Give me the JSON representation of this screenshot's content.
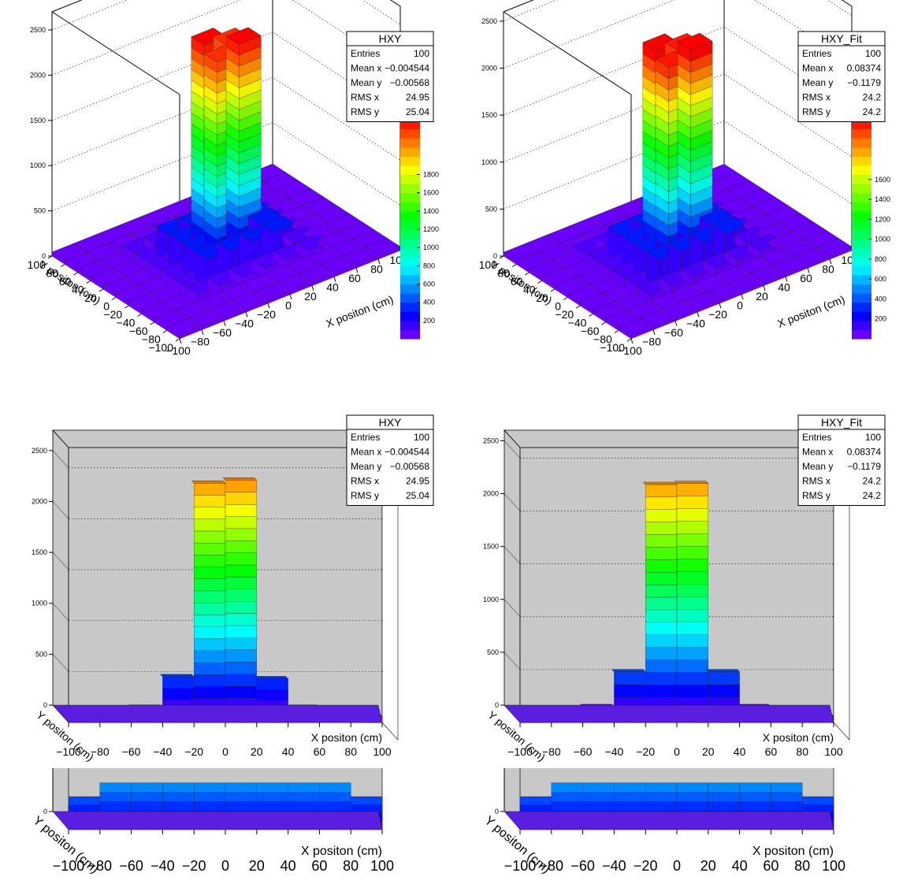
{
  "chart_data": [
    {
      "type": "bar3d",
      "panel": "top-left",
      "view": "lego-3d",
      "stats": {
        "title": "HXY",
        "rows": [
          {
            "label": "Entries",
            "value": "100"
          },
          {
            "label": "Mean x",
            "value": "−0.004544"
          },
          {
            "label": "Mean y",
            "value": "−0.00568"
          },
          {
            "label": "RMS x",
            "value": "24.95"
          },
          {
            "label": "RMS y",
            "value": "25.04"
          }
        ]
      },
      "xlabel": "X positon (cm)",
      "ylabel": "Y positon (cm)",
      "xticks": [
        "−100",
        "−80",
        "−60",
        "−40",
        "−20",
        "0",
        "20",
        "40",
        "60",
        "80",
        "100"
      ],
      "yticks": [
        "100",
        "80",
        "60",
        "40",
        "20",
        "0",
        "−20",
        "−40",
        "−60",
        "−80",
        "−100"
      ],
      "zticks": [
        "0",
        "500",
        "1000",
        "1500",
        "2000",
        "2500"
      ],
      "zlim": [
        0,
        2700
      ],
      "colz_ticks": [
        "200",
        "400",
        "600",
        "800",
        "1000",
        "1200",
        "1400",
        "1600",
        "1800"
      ],
      "colz_max": 2400,
      "peak": 2400
    },
    {
      "type": "bar3d",
      "panel": "top-right",
      "view": "lego-3d",
      "stats": {
        "title": "HXY_Fit",
        "rows": [
          {
            "label": "Entries",
            "value": "100"
          },
          {
            "label": "Mean x",
            "value": "0.08374"
          },
          {
            "label": "Mean y",
            "value": "−0.1179"
          },
          {
            "label": "RMS x",
            "value": "24.2"
          },
          {
            "label": "RMS y",
            "value": "24.2"
          }
        ]
      },
      "xlabel": "X positon (cm)",
      "ylabel": "Y positon (cm)",
      "xticks": [
        "−100",
        "−80",
        "−60",
        "−40",
        "−20",
        "0",
        "20",
        "40",
        "60",
        "80",
        "100"
      ],
      "yticks": [
        "100",
        "80",
        "60",
        "40",
        "20",
        "0",
        "−20",
        "−40",
        "−60",
        "−80",
        "−100"
      ],
      "zticks": [
        "0",
        "500",
        "1000",
        "1500",
        "2000",
        "2500"
      ],
      "zlim": [
        0,
        2600
      ],
      "colz_ticks": [
        "200",
        "400",
        "600",
        "800",
        "1000",
        "1200",
        "1400",
        "1600"
      ],
      "colz_max": 2200,
      "peak": 2250
    },
    {
      "type": "bar3d",
      "panel": "bottom-left",
      "view": "lego-front",
      "stats": {
        "title": "HXY",
        "rows": [
          {
            "label": "Entries",
            "value": "100"
          },
          {
            "label": "Mean x",
            "value": "−0.004544"
          },
          {
            "label": "Mean y",
            "value": "−0.00568"
          },
          {
            "label": "RMS x",
            "value": "24.95"
          },
          {
            "label": "RMS y",
            "value": "25.04"
          }
        ]
      },
      "xlabel": "X positon (cm)",
      "ylabel": "Y positon (cm)",
      "xticks": [
        "−100",
        "−80",
        "−60",
        "−40",
        "−20",
        "0",
        "20",
        "40",
        "60",
        "80",
        "100"
      ],
      "zticks": [
        "0",
        "500",
        "1000",
        "1500",
        "2000",
        "2500"
      ],
      "zlim": [
        0,
        2700
      ],
      "x": [
        -90,
        -70,
        -50,
        -30,
        -10,
        10,
        30,
        50,
        70,
        90
      ],
      "values": [
        60,
        90,
        150,
        450,
        2350,
        2380,
        430,
        150,
        90,
        60
      ]
    },
    {
      "type": "bar3d",
      "panel": "bottom-right",
      "view": "lego-front",
      "stats": {
        "title": "HXY_Fit",
        "rows": [
          {
            "label": "Entries",
            "value": "100"
          },
          {
            "label": "Mean x",
            "value": "0.08374"
          },
          {
            "label": "Mean y",
            "value": "−0.1179"
          },
          {
            "label": "RMS x",
            "value": "24.2"
          },
          {
            "label": "RMS y",
            "value": "24.2"
          }
        ]
      },
      "xlabel": "X positon (cm)",
      "ylabel": "Y positon (cm)",
      "xticks": [
        "−100",
        "−80",
        "−60",
        "−40",
        "−20",
        "0",
        "20",
        "40",
        "60",
        "80",
        "100"
      ],
      "zticks": [
        "0",
        "500",
        "1000",
        "1500",
        "2000",
        "2500"
      ],
      "zlim": [
        0,
        2600
      ],
      "x": [
        -90,
        -70,
        -50,
        -30,
        -10,
        10,
        30,
        50,
        70,
        90
      ],
      "values": [
        60,
        90,
        150,
        480,
        2250,
        2260,
        480,
        150,
        90,
        60
      ]
    }
  ]
}
